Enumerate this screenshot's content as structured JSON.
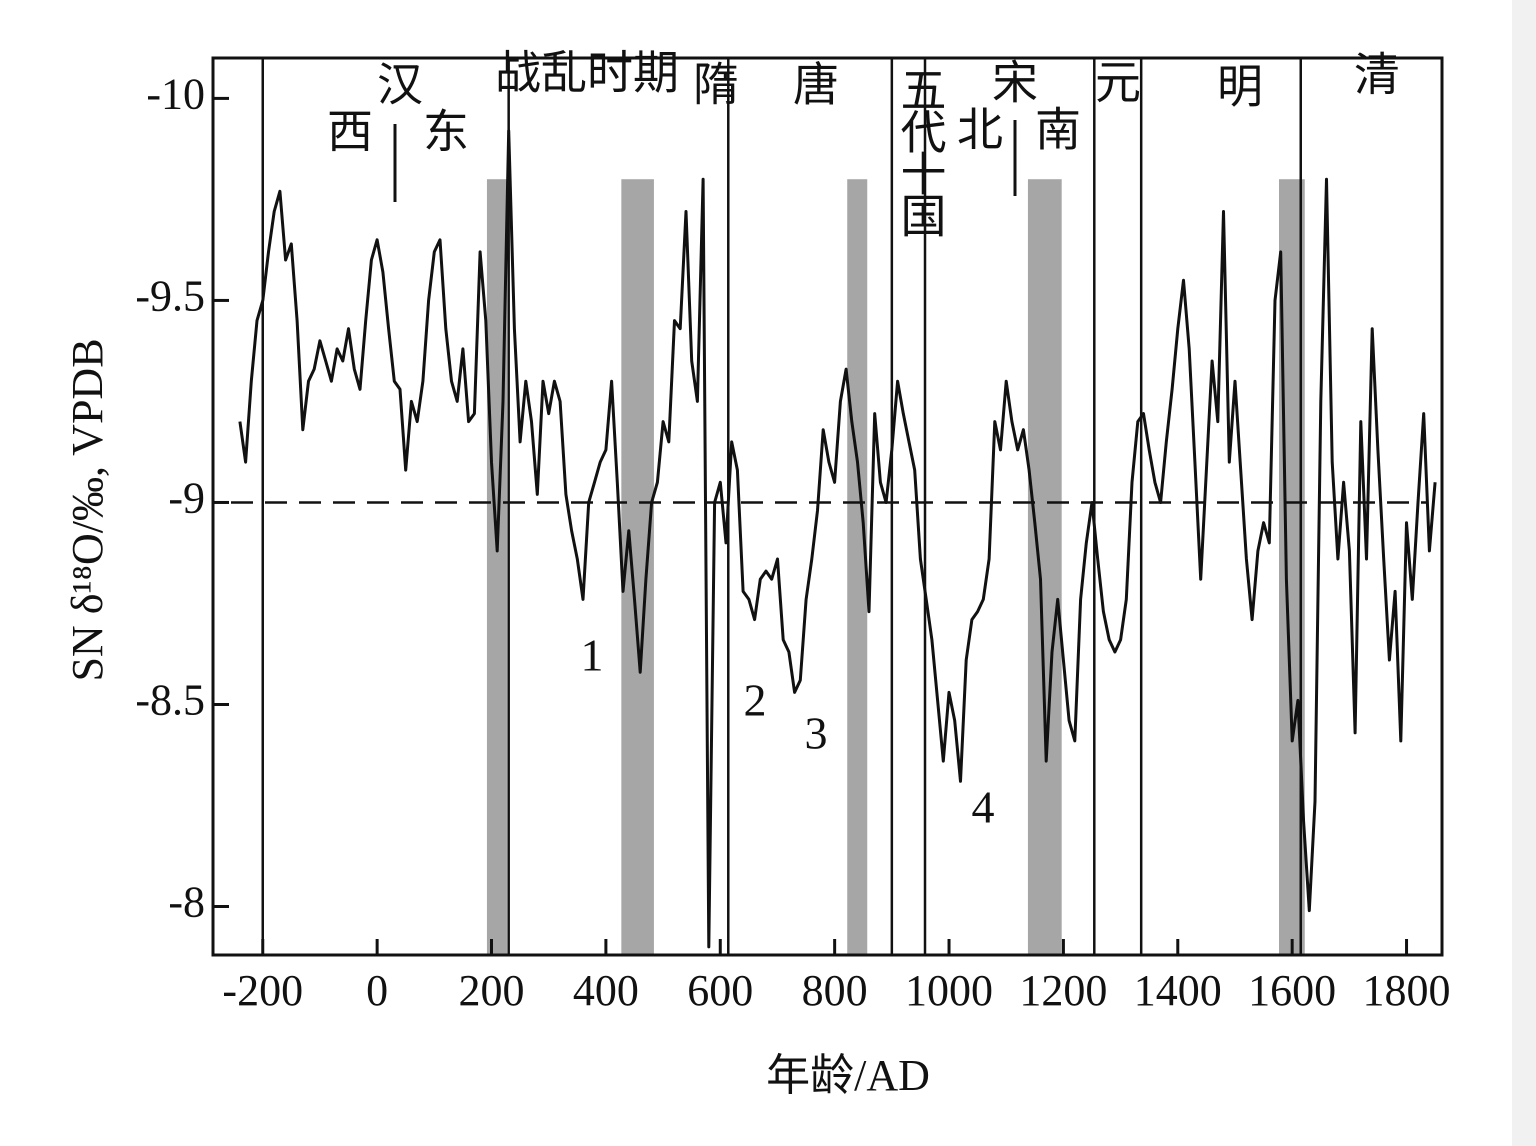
{
  "chart_data": {
    "type": "line",
    "xlabel": "年龄/AD",
    "ylabel": "SN δ¹⁸O/‰, VPDB",
    "color": "#111111",
    "xlim": [
      -287,
      1862
    ],
    "ylim": [
      -7.88,
      -10.1
    ],
    "xticks": [
      -200,
      0,
      200,
      400,
      600,
      800,
      1000,
      1200,
      1400,
      1600,
      1800
    ],
    "yticks": [
      -10,
      -9.5,
      -9,
      -8.5,
      -8
    ],
    "reference_line": -9,
    "dividers": [
      -200,
      230,
      614,
      900,
      958,
      1254,
      1336,
      1615
    ],
    "shaded_regions": [
      [
        192,
        227
      ],
      [
        427,
        484
      ],
      [
        822,
        857
      ],
      [
        1138,
        1197
      ],
      [
        1577,
        1622
      ]
    ],
    "shaded_top": -9.8,
    "annotations": [
      "西",
      "汉",
      "东",
      "战乱时期",
      "隋",
      "唐",
      "五代十国",
      "宋",
      "北",
      "南",
      "元",
      "明",
      "清",
      "1",
      "2",
      "3",
      "4"
    ],
    "x": [
      -240,
      -230,
      -220,
      -210,
      -200,
      -190,
      -180,
      -170,
      -160,
      -150,
      -140,
      -130,
      -120,
      -110,
      -100,
      -90,
      -80,
      -70,
      -60,
      -50,
      -40,
      -30,
      -20,
      -10,
      0,
      10,
      20,
      30,
      40,
      50,
      60,
      70,
      80,
      90,
      100,
      110,
      120,
      130,
      140,
      150,
      160,
      170,
      180,
      190,
      200,
      210,
      220,
      230,
      240,
      250,
      260,
      270,
      280,
      290,
      300,
      310,
      320,
      330,
      340,
      350,
      360,
      370,
      380,
      390,
      400,
      410,
      420,
      430,
      440,
      450,
      460,
      470,
      480,
      490,
      500,
      510,
      520,
      530,
      540,
      550,
      560,
      570,
      580,
      590,
      600,
      610,
      620,
      630,
      640,
      650,
      660,
      670,
      680,
      690,
      700,
      710,
      720,
      730,
      740,
      750,
      760,
      770,
      780,
      790,
      800,
      810,
      820,
      830,
      840,
      850,
      860,
      870,
      880,
      890,
      900,
      910,
      920,
      930,
      940,
      950,
      960,
      970,
      980,
      990,
      1000,
      1010,
      1020,
      1030,
      1040,
      1050,
      1060,
      1070,
      1080,
      1090,
      1100,
      1110,
      1120,
      1130,
      1140,
      1150,
      1160,
      1170,
      1180,
      1190,
      1200,
      1210,
      1220,
      1230,
      1240,
      1250,
      1260,
      1270,
      1280,
      1290,
      1300,
      1310,
      1320,
      1330,
      1340,
      1350,
      1360,
      1370,
      1380,
      1390,
      1400,
      1410,
      1420,
      1430,
      1440,
      1450,
      1460,
      1470,
      1480,
      1490,
      1500,
      1510,
      1520,
      1530,
      1540,
      1550,
      1560,
      1570,
      1580,
      1590,
      1600,
      1610,
      1620,
      1630,
      1640,
      1650,
      1660,
      1670,
      1680,
      1690,
      1700,
      1710,
      1720,
      1730,
      1740,
      1750,
      1760,
      1770,
      1780,
      1790,
      1800,
      1810,
      1820,
      1830,
      1840,
      1850
    ],
    "values": [
      -9.2,
      -9.1,
      -9.3,
      -9.45,
      -9.5,
      -9.62,
      -9.72,
      -9.77,
      -9.6,
      -9.64,
      -9.45,
      -9.18,
      -9.3,
      -9.33,
      -9.4,
      -9.35,
      -9.3,
      -9.38,
      -9.35,
      -9.43,
      -9.33,
      -9.28,
      -9.45,
      -9.6,
      -9.65,
      -9.57,
      -9.43,
      -9.3,
      -9.28,
      -9.08,
      -9.25,
      -9.2,
      -9.3,
      -9.5,
      -9.62,
      -9.65,
      -9.43,
      -9.3,
      -9.25,
      -9.38,
      -9.2,
      -9.22,
      -9.62,
      -9.45,
      -9.1,
      -8.88,
      -9.25,
      -9.92,
      -9.43,
      -9.15,
      -9.3,
      -9.2,
      -9.02,
      -9.3,
      -9.22,
      -9.3,
      -9.25,
      -9.02,
      -8.93,
      -8.86,
      -8.76,
      -9.0,
      -9.05,
      -9.1,
      -9.13,
      -9.3,
      -9.05,
      -8.78,
      -8.93,
      -8.76,
      -8.58,
      -8.81,
      -9.0,
      -9.05,
      -9.2,
      -9.15,
      -9.45,
      -9.43,
      -9.72,
      -9.35,
      -9.25,
      -9.8,
      -7.9,
      -9.0,
      -9.05,
      -8.9,
      -9.15,
      -9.08,
      -8.78,
      -8.76,
      -8.71,
      -8.81,
      -8.83,
      -8.81,
      -8.86,
      -8.66,
      -8.63,
      -8.53,
      -8.56,
      -8.76,
      -8.86,
      -8.98,
      -9.18,
      -9.1,
      -9.05,
      -9.25,
      -9.33,
      -9.2,
      -9.1,
      -8.95,
      -8.73,
      -9.22,
      -9.05,
      -9.0,
      -9.13,
      -9.3,
      -9.22,
      -9.15,
      -9.08,
      -8.86,
      -8.76,
      -8.66,
      -8.51,
      -8.36,
      -8.53,
      -8.46,
      -8.31,
      -8.61,
      -8.71,
      -8.73,
      -8.76,
      -8.86,
      -9.2,
      -9.13,
      -9.3,
      -9.2,
      -9.13,
      -9.18,
      -9.08,
      -8.95,
      -8.81,
      -8.36,
      -8.63,
      -8.76,
      -8.61,
      -8.46,
      -8.41,
      -8.76,
      -8.9,
      -9.0,
      -8.86,
      -8.73,
      -8.66,
      -8.63,
      -8.66,
      -8.76,
      -9.05,
      -9.2,
      -9.22,
      -9.13,
      -9.05,
      -9.0,
      -9.15,
      -9.28,
      -9.43,
      -9.55,
      -9.38,
      -9.1,
      -8.81,
      -9.08,
      -9.35,
      -9.2,
      -9.72,
      -9.1,
      -9.3,
      -9.08,
      -8.86,
      -8.71,
      -8.88,
      -8.95,
      -8.9,
      -9.5,
      -9.62,
      -8.81,
      -8.41,
      -8.51,
      -8.21,
      -7.99,
      -8.26,
      -9.25,
      -9.8,
      -9.1,
      -8.86,
      -9.05,
      -8.88,
      -8.43,
      -9.2,
      -8.86,
      -9.43,
      -9.13,
      -8.86,
      -8.61,
      -8.78,
      -8.41,
      -8.95,
      -8.76,
      -9.0,
      -9.22,
      -8.88,
      -9.05
    ]
  }
}
